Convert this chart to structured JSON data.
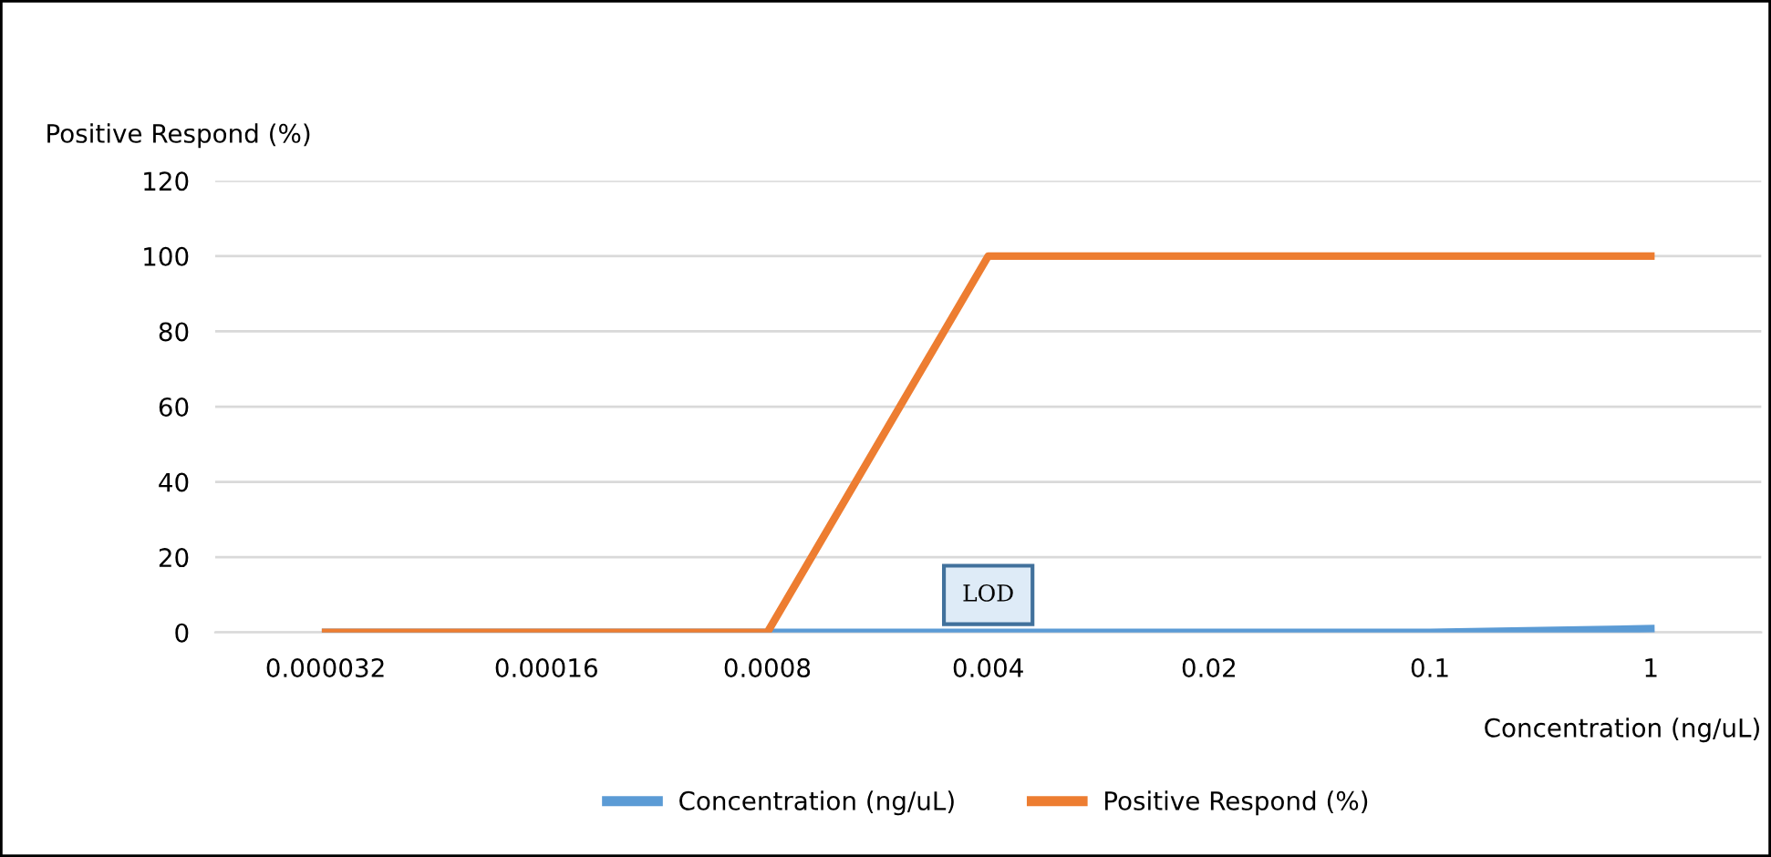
{
  "chart_data": {
    "type": "line",
    "ylabel": "Positive Respond (%)",
    "xlabel": "Concentration (ng/uL)",
    "categories": [
      "0.000032",
      "0.00016",
      "0.0008",
      "0.004",
      "0.02",
      "0.1",
      "1"
    ],
    "series": [
      {
        "name": "Concentration (ng/uL)",
        "color": "#5b9bd5",
        "values": [
          0,
          0,
          0,
          0,
          0,
          0,
          1
        ]
      },
      {
        "name": "Positive Respond (%)",
        "color": "#ed7d31",
        "values": [
          0,
          0,
          0,
          100,
          100,
          100,
          100
        ]
      }
    ],
    "ylim": [
      0,
      120
    ],
    "yticks": [
      0,
      20,
      40,
      60,
      80,
      100,
      120
    ],
    "grid": "y",
    "legend": "bottom",
    "marker": "none",
    "line_style": "solid",
    "annotations": [
      "LOD"
    ]
  }
}
